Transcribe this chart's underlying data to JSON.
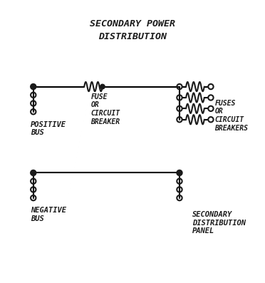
{
  "title_line1": "SECONDARY POWER",
  "title_line2": "DISTRIBUTION",
  "label_positive_bus": "POSITIVE\nBUS",
  "label_fuse_cb": "FUSE\nOR\nCIRCUIT\nBREAKER",
  "label_fuses_cbs": "FUSES\nOR\nCIRCUIT\nBREAKERS",
  "label_negative_bus": "NEGATIVE\nBUS",
  "label_sdp": "SECONDARY\nDISTRIBUTION\nPANEL",
  "bg_color": "#ffffff",
  "line_color": "#1a1a1a",
  "font_color": "#1a1a1a"
}
